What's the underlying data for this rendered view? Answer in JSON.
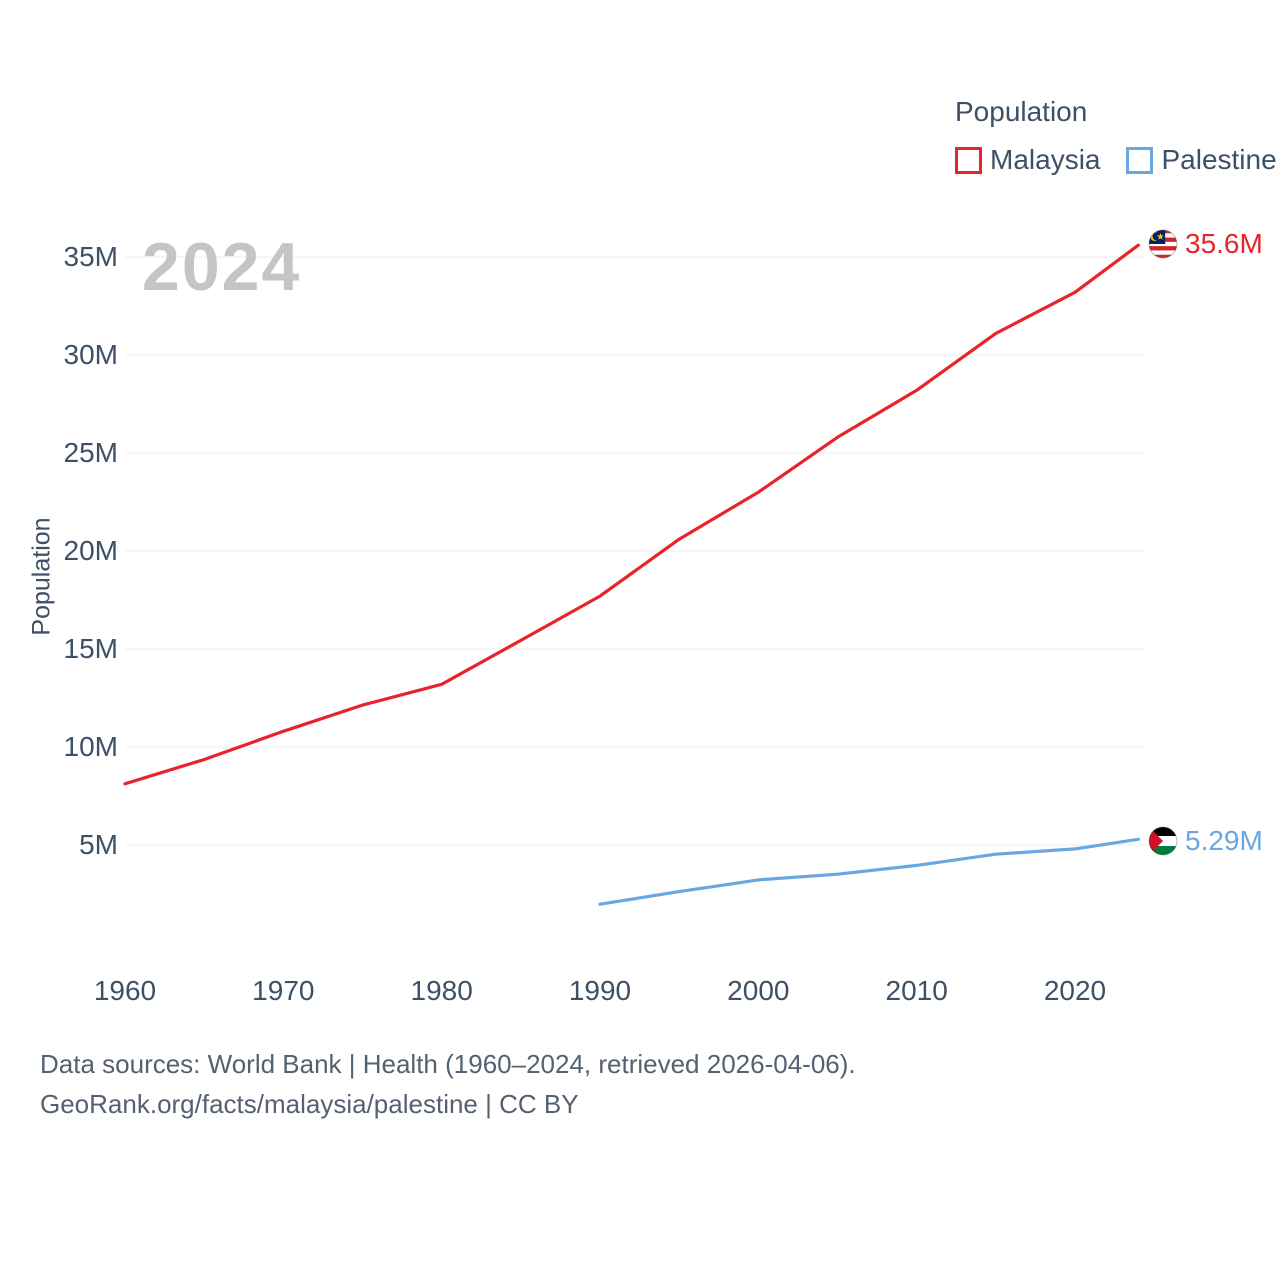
{
  "watermark": "2024",
  "legend": {
    "title": "Population",
    "items": [
      {
        "label": "Malaysia",
        "color": "#e8232a"
      },
      {
        "label": "Palestine",
        "color": "#6aa7e0"
      }
    ]
  },
  "y_axis": {
    "label": "Population",
    "ticks": [
      "5M",
      "10M",
      "15M",
      "20M",
      "25M",
      "30M",
      "35M"
    ]
  },
  "x_axis": {
    "ticks": [
      "1960",
      "1970",
      "1980",
      "1990",
      "2000",
      "2010",
      "2020"
    ]
  },
  "end_labels": [
    {
      "series": "Malaysia",
      "value": "35.6M",
      "flag": "malaysia-flag"
    },
    {
      "series": "Palestine",
      "value": "5.29M",
      "flag": "palestine-flag"
    }
  ],
  "footer": {
    "line1": "Data sources: World Bank | Health (1960–2024, retrieved 2026-04-06).",
    "line2": "GeoRank.org/facts/malaysia/palestine | CC BY"
  },
  "chart_data": {
    "type": "line",
    "title": "Population",
    "xlabel": "",
    "ylabel": "Population",
    "units": "millions of people",
    "x_range": [
      1960,
      2024
    ],
    "ylim": [
      0,
      37
    ],
    "grid": "horizontal-only",
    "legend_position": "top-right",
    "yticks_m": [
      5,
      10,
      15,
      20,
      25,
      30,
      35
    ],
    "xticks": [
      1960,
      1970,
      1980,
      1990,
      2000,
      2010,
      2020
    ],
    "series": [
      {
        "name": "Malaysia",
        "color": "#e8232a",
        "end_label": "35.6M",
        "points": [
          [
            1960,
            8.12
          ],
          [
            1965,
            9.36
          ],
          [
            1970,
            10.8
          ],
          [
            1975,
            12.14
          ],
          [
            1980,
            13.2
          ],
          [
            1985,
            15.44
          ],
          [
            1990,
            17.7
          ],
          [
            1995,
            20.6
          ],
          [
            2000,
            23.0
          ],
          [
            2005,
            25.8
          ],
          [
            2010,
            28.2
          ],
          [
            2015,
            31.1
          ],
          [
            2020,
            33.2
          ],
          [
            2024,
            35.6
          ]
        ]
      },
      {
        "name": "Palestine",
        "color": "#6aa7e0",
        "end_label": "5.29M",
        "points": [
          [
            1990,
            1.98
          ],
          [
            1995,
            2.62
          ],
          [
            2000,
            3.22
          ],
          [
            2005,
            3.51
          ],
          [
            2010,
            3.96
          ],
          [
            2015,
            4.53
          ],
          [
            2020,
            4.8
          ],
          [
            2024,
            5.29
          ]
        ]
      }
    ]
  }
}
